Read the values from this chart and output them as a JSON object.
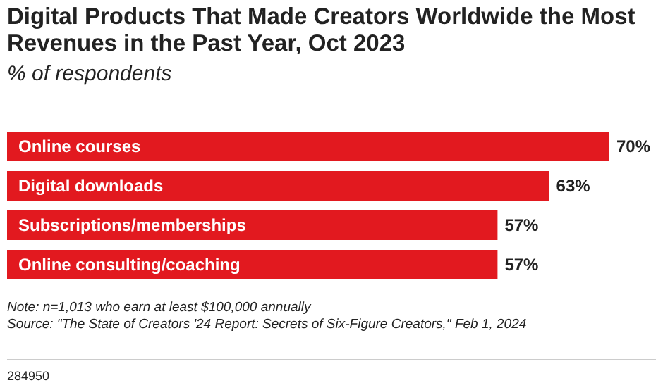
{
  "chart_data": {
    "type": "bar",
    "orientation": "horizontal",
    "title": "Digital Products That Made Creators Worldwide the Most Revenues in the Past Year, Oct 2023",
    "subtitle": "% of respondents",
    "categories": [
      "Online courses",
      "Digital downloads",
      "Subscriptions/memberships",
      "Online consulting/coaching"
    ],
    "values": [
      70,
      63,
      57,
      57
    ],
    "value_labels": [
      "70%",
      "63%",
      "57%",
      "57%"
    ],
    "color": "#e2191f",
    "annotations": [
      "Note: n=1,013 who earn at least $100,000 annually",
      "Source: \"The State of Creators '24 Report: Secrets of Six-Figure Creators,\" Feb 1, 2024",
      "284950"
    ]
  }
}
